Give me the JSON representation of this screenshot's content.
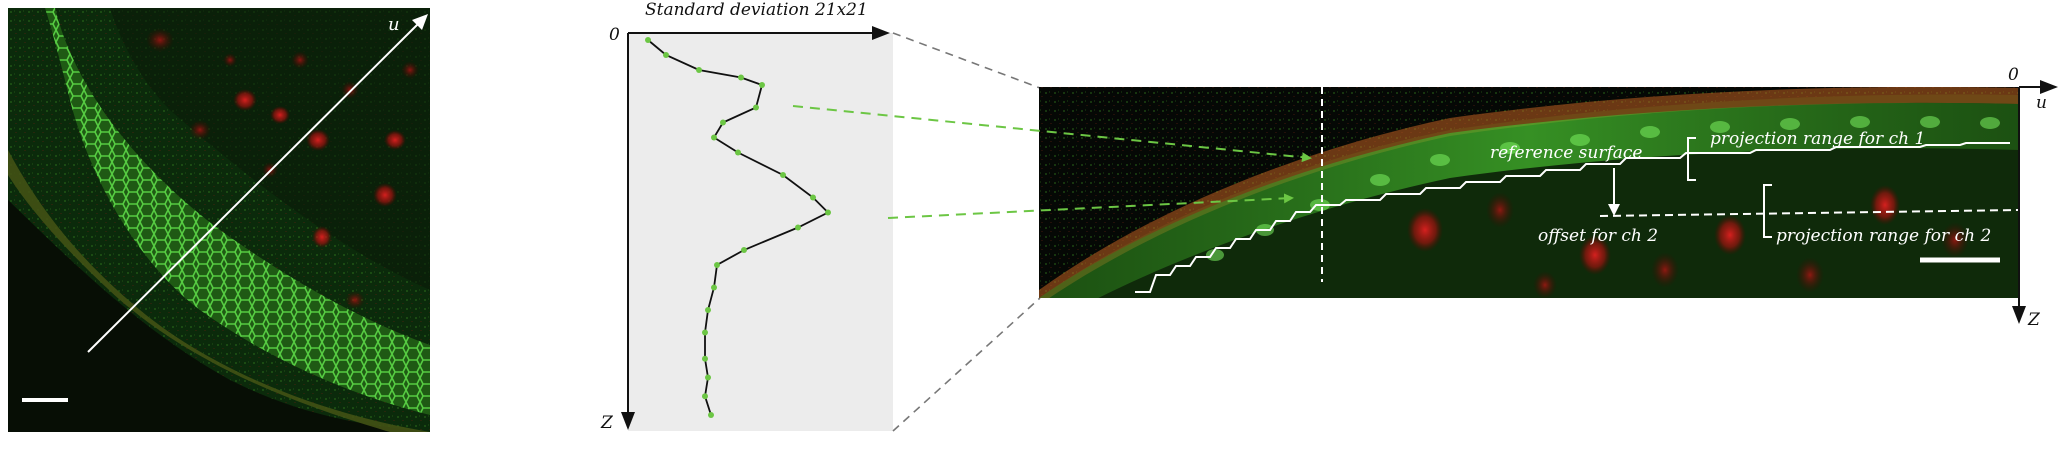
{
  "panel_a": {
    "axis_label": "u"
  },
  "panel_b": {
    "title": "Standard deviation 21x21",
    "origin_label": "0",
    "z_label": "Z",
    "profile_points": [
      [
        0.0,
        0.0
      ],
      [
        0.06,
        0.04
      ],
      [
        0.17,
        0.08
      ],
      [
        0.31,
        0.1
      ],
      [
        0.38,
        0.12
      ],
      [
        0.36,
        0.18
      ],
      [
        0.25,
        0.22
      ],
      [
        0.22,
        0.26
      ],
      [
        0.3,
        0.3
      ],
      [
        0.45,
        0.36
      ],
      [
        0.55,
        0.42
      ],
      [
        0.6,
        0.46
      ],
      [
        0.5,
        0.5
      ],
      [
        0.32,
        0.56
      ],
      [
        0.23,
        0.6
      ],
      [
        0.22,
        0.66
      ],
      [
        0.2,
        0.72
      ],
      [
        0.19,
        0.78
      ],
      [
        0.19,
        0.85
      ],
      [
        0.2,
        0.9
      ],
      [
        0.19,
        0.95
      ],
      [
        0.21,
        1.0
      ]
    ]
  },
  "panel_c": {
    "origin_label": "0",
    "u_label": "u",
    "z_label": "Z",
    "reference_surface_label": "reference surface",
    "projection_ch1_label": "projection range for ch 1",
    "offset_label": "offset for ch 2",
    "projection_ch2_label": "projection range for ch 2"
  },
  "colors": {
    "green_fluor": "#3cd23c",
    "red_fluor": "#c81818",
    "arrow_green": "#6cc644",
    "profile_bg": "#ececec"
  }
}
